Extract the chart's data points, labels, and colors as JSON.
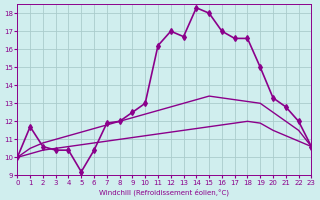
{
  "xlabel": "Windchill (Refroidissement éolien,°C)",
  "bg_color": "#d0eeee",
  "grid_color": "#aacccc",
  "line_color": "#8b008b",
  "xlim": [
    0,
    23
  ],
  "ylim": [
    9,
    18.5
  ],
  "yticks": [
    9,
    10,
    11,
    12,
    13,
    14,
    15,
    16,
    17,
    18
  ],
  "xticks": [
    0,
    1,
    2,
    3,
    4,
    5,
    6,
    7,
    8,
    9,
    10,
    11,
    12,
    13,
    14,
    15,
    16,
    17,
    18,
    19,
    20,
    21,
    22,
    23
  ],
  "series": [
    {
      "x": [
        0,
        1,
        2,
        3,
        4,
        5,
        6,
        7,
        8,
        9,
        10,
        11,
        12,
        13,
        14,
        15,
        16,
        17,
        18,
        19,
        20,
        21,
        22,
        23
      ],
      "y": [
        10.0,
        11.7,
        10.6,
        10.4,
        10.4,
        9.2,
        10.4,
        11.9,
        12.0,
        12.5,
        13.0,
        16.2,
        17.0,
        16.7,
        18.3,
        18.0,
        17.0,
        16.6,
        16.6,
        15.0,
        13.3,
        12.8,
        12.0,
        10.6
      ],
      "marker": "d",
      "markersize": 3,
      "linewidth": 1.2
    },
    {
      "x": [
        0,
        1,
        2,
        3,
        4,
        5,
        6,
        7,
        8,
        9,
        10,
        11,
        12,
        13,
        14,
        15,
        16,
        17,
        18,
        19,
        20,
        21,
        22,
        23
      ],
      "y": [
        10.0,
        10.5,
        10.8,
        11.0,
        11.2,
        11.4,
        11.6,
        11.8,
        12.0,
        12.2,
        12.4,
        12.6,
        12.8,
        13.0,
        13.2,
        13.4,
        13.3,
        13.2,
        13.1,
        13.0,
        12.5,
        12.0,
        11.5,
        10.6
      ],
      "marker": null,
      "markersize": 0,
      "linewidth": 1.0
    },
    {
      "x": [
        0,
        1,
        2,
        3,
        4,
        5,
        6,
        7,
        8,
        9,
        10,
        11,
        12,
        13,
        14,
        15,
        16,
        17,
        18,
        19,
        20,
        21,
        22,
        23
      ],
      "y": [
        10.0,
        10.2,
        10.4,
        10.5,
        10.6,
        10.7,
        10.8,
        10.9,
        11.0,
        11.1,
        11.2,
        11.3,
        11.4,
        11.5,
        11.6,
        11.7,
        11.8,
        11.9,
        12.0,
        11.9,
        11.5,
        11.2,
        10.9,
        10.6
      ],
      "marker": null,
      "markersize": 0,
      "linewidth": 1.0
    }
  ]
}
